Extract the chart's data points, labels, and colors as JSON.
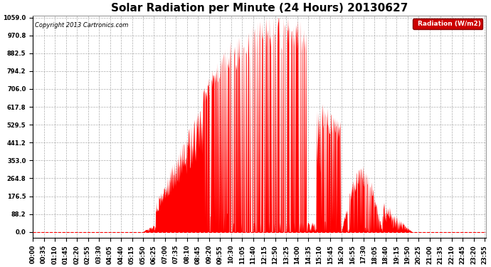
{
  "title": "Solar Radiation per Minute (24 Hours) 20130627",
  "copyright_text": "Copyright 2013 Cartronics.com",
  "legend_label": "Radiation (W/m2)",
  "ylabel_ticks": [
    0.0,
    88.2,
    176.5,
    264.8,
    353.0,
    441.2,
    529.5,
    617.8,
    706.0,
    794.2,
    882.5,
    970.8,
    1059.0
  ],
  "ymax": 1059.0,
  "ymin": 0.0,
  "fill_color": "#FF0000",
  "line_color": "#FF0000",
  "background_color": "#FFFFFF",
  "grid_color": "#999999",
  "dashed_line_color": "#FF0000",
  "title_fontsize": 11,
  "tick_fontsize": 6,
  "legend_bg": "#CC0000",
  "legend_text_color": "#FFFFFF",
  "xtick_every": 35,
  "total_minutes": 1440
}
